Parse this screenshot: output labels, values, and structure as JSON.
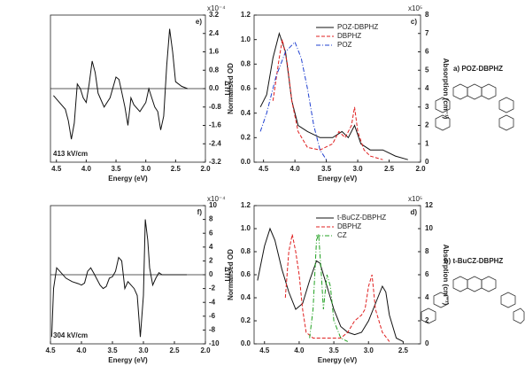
{
  "chart_data": [
    {
      "type": "line",
      "label": "e)",
      "xlabel": "Energy (eV)",
      "ylabel": "ΔT/T",
      "y_multiplier": "x10⁻⁴",
      "annotation": "413 kV/cm",
      "xlim": [
        4.6,
        2.0
      ],
      "xticks": [
        4.5,
        {
          "value": 4.0,
          "label": "4.0"
        },
        3.5,
        {
          "value": 3.0,
          "label": "3.0"
        },
        2.5,
        {
          "value": 2.0,
          "label": "2.0"
        }
      ],
      "ylim": [
        -3.2,
        3.2
      ],
      "yticks": [
        -3.2,
        -2.4,
        -1.6,
        -0.8,
        {
          "value": 0,
          "label": "0.0"
        },
        0.8,
        1.6,
        2.4,
        3.2
      ],
      "zero_line": true,
      "series": [
        {
          "color": "#111111",
          "dash": "solid",
          "x": [
            4.55,
            4.45,
            4.35,
            4.3,
            4.25,
            4.2,
            4.15,
            4.1,
            4.05,
            4.0,
            3.95,
            3.9,
            3.85,
            3.8,
            3.75,
            3.7,
            3.6,
            3.5,
            3.45,
            3.4,
            3.35,
            3.3,
            3.25,
            3.2,
            3.1,
            3.0,
            2.95,
            2.9,
            2.85,
            2.8,
            2.75,
            2.7,
            2.65,
            2.6,
            2.55,
            2.5,
            2.4,
            2.3
          ],
          "values": [
            -0.3,
            -0.6,
            -0.9,
            -1.4,
            -2.2,
            -1.5,
            0.2,
            0.0,
            -0.4,
            -0.6,
            0.2,
            1.2,
            0.7,
            -0.2,
            -0.5,
            -0.8,
            -0.4,
            0.5,
            0.4,
            -0.2,
            -0.8,
            -1.6,
            -0.4,
            -0.7,
            -1.0,
            -0.6,
            0.0,
            -0.4,
            -0.8,
            -1.0,
            -1.8,
            -1.2,
            1.0,
            2.6,
            1.6,
            0.3,
            0.1,
            0.0
          ]
        }
      ]
    },
    {
      "type": "line",
      "label": "c)",
      "xlabel": "Energy (eV)",
      "ylabel": "Normalised OD",
      "y2label": "Absorption (cm⁻¹)",
      "y2_multiplier": "x10⁵",
      "legend": "upper right",
      "xlim": [
        4.65,
        2.0
      ],
      "xticks": [
        4.5,
        {
          "value": 4.0,
          "label": "4.0"
        },
        3.5,
        {
          "value": 3.0,
          "label": "3.0"
        },
        2.5,
        {
          "value": 2.0,
          "label": "2.0"
        }
      ],
      "ylim": [
        0,
        1.2
      ],
      "yticks": [
        {
          "value": 0,
          "label": "0.0"
        },
        0.2,
        0.4,
        0.6,
        0.8,
        {
          "value": 1.0,
          "label": "1.0"
        },
        1.2
      ],
      "y2lim": [
        0,
        8
      ],
      "y2ticks": [
        0,
        1,
        2,
        3,
        4,
        5,
        6,
        7,
        8
      ],
      "series": [
        {
          "name": "POZ-DBPHZ",
          "color": "#111111",
          "dash": "solid",
          "x": [
            4.55,
            4.45,
            4.35,
            4.25,
            4.15,
            4.05,
            3.95,
            3.8,
            3.6,
            3.4,
            3.25,
            3.15,
            3.05,
            2.95,
            2.8,
            2.6,
            2.4,
            2.2
          ],
          "values": [
            0.45,
            0.55,
            0.85,
            1.05,
            0.9,
            0.5,
            0.3,
            0.25,
            0.2,
            0.2,
            0.25,
            0.2,
            0.3,
            0.15,
            0.1,
            0.1,
            0.05,
            0.02
          ]
        },
        {
          "name": "DBPHZ",
          "color": "#e02020",
          "dash": "dashed",
          "x": [
            4.35,
            4.25,
            4.2,
            4.12,
            4.05,
            3.95,
            3.8,
            3.6,
            3.4,
            3.3,
            3.2,
            3.1,
            3.05,
            3.0,
            2.9,
            2.8,
            2.6
          ],
          "values": [
            0.5,
            0.85,
            1.0,
            0.8,
            0.5,
            0.25,
            0.12,
            0.1,
            0.15,
            0.25,
            0.2,
            0.3,
            0.45,
            0.25,
            0.1,
            0.05,
            0.02
          ]
        },
        {
          "name": "POZ",
          "color": "#2040d0",
          "dash": "dashdot",
          "x": [
            4.55,
            4.45,
            4.3,
            4.15,
            4.0,
            3.9,
            3.8,
            3.7,
            3.6,
            3.5
          ],
          "values": [
            0.25,
            0.4,
            0.7,
            0.9,
            0.98,
            0.85,
            0.6,
            0.3,
            0.1,
            0.02
          ]
        }
      ]
    },
    {
      "type": "line",
      "label": "f)",
      "xlabel": "Energy (eV)",
      "ylabel": "ΔT/T",
      "y_multiplier": "x10⁻⁴",
      "annotation": "304 kV/cm",
      "xlim": [
        4.5,
        2.0
      ],
      "xticks": [
        4.5,
        {
          "value": 4.0,
          "label": "4.0"
        },
        3.5,
        {
          "value": 3.0,
          "label": "3.0"
        },
        2.5,
        {
          "value": 2.0,
          "label": "2.0"
        }
      ],
      "ylim": [
        -10,
        10
      ],
      "yticks": [
        -10,
        -8,
        -6,
        -4,
        -2,
        0,
        2,
        4,
        6,
        8,
        10
      ],
      "zero_line": true,
      "series": [
        {
          "color": "#111111",
          "dash": "solid",
          "x": [
            4.48,
            4.45,
            4.4,
            4.35,
            4.25,
            4.15,
            4.05,
            4.0,
            3.95,
            3.9,
            3.85,
            3.8,
            3.7,
            3.65,
            3.6,
            3.55,
            3.5,
            3.45,
            3.4,
            3.35,
            3.3,
            3.25,
            3.2,
            3.15,
            3.1,
            3.05,
            3.0,
            2.97,
            2.93,
            2.9,
            2.85,
            2.8,
            2.75,
            2.7,
            2.5,
            2.3
          ],
          "values": [
            -9,
            -2,
            1,
            0.5,
            -0.5,
            -1,
            -1.3,
            -1.5,
            -1.2,
            0.5,
            1.0,
            0.2,
            -1.5,
            -2,
            -1.7,
            -0.5,
            -0.3,
            0.5,
            2.5,
            2,
            -2,
            -1,
            -1.5,
            -2,
            -3,
            -9,
            -3,
            8,
            5,
            1,
            -1.5,
            -0.5,
            0.3,
            0,
            0,
            0
          ]
        }
      ]
    },
    {
      "type": "line",
      "label": "d)",
      "xlabel": "Energy (eV)",
      "ylabel": "Normalised OD",
      "y2label": "Absorption (cm⁻¹)",
      "y2_multiplier": "x10⁵",
      "legend": "upper right",
      "xlim": [
        4.65,
        2.25
      ],
      "xticks": [
        4.5,
        {
          "value": 4.0,
          "label": "4.0"
        },
        3.5,
        {
          "value": 3.0,
          "label": "3.0"
        },
        2.5
      ],
      "ylim": [
        0,
        1.2
      ],
      "yticks": [
        {
          "value": 0,
          "label": "0.0"
        },
        0.2,
        0.4,
        0.6,
        0.8,
        {
          "value": 1.0,
          "label": "1.0"
        },
        1.2
      ],
      "y2lim": [
        0,
        12
      ],
      "y2ticks": [
        0,
        2,
        4,
        6,
        8,
        10,
        12
      ],
      "series": [
        {
          "name": "t-BuCZ-DBPHZ",
          "color": "#111111",
          "dash": "solid",
          "x": [
            4.6,
            4.5,
            4.42,
            4.35,
            4.25,
            4.15,
            4.05,
            3.95,
            3.85,
            3.75,
            3.7,
            3.6,
            3.5,
            3.4,
            3.3,
            3.2,
            3.1,
            3.0,
            2.9,
            2.8,
            2.75,
            2.7,
            2.6,
            2.5
          ],
          "values": [
            0.55,
            0.85,
            1.0,
            0.9,
            0.65,
            0.45,
            0.3,
            0.35,
            0.55,
            0.72,
            0.7,
            0.5,
            0.3,
            0.15,
            0.1,
            0.08,
            0.1,
            0.2,
            0.35,
            0.5,
            0.45,
            0.25,
            0.05,
            0.02
          ]
        },
        {
          "name": "DBPHZ",
          "color": "#e02020",
          "dash": "dashed",
          "x": [
            4.2,
            4.15,
            4.1,
            4.05,
            4.0,
            3.95,
            3.9,
            3.8,
            3.4,
            3.3,
            3.2,
            3.1,
            3.05,
            3.0,
            2.95,
            2.9,
            2.8,
            2.7
          ],
          "values": [
            0.4,
            0.8,
            0.95,
            0.8,
            0.6,
            0.3,
            0.1,
            0.05,
            0.05,
            0.1,
            0.2,
            0.25,
            0.3,
            0.5,
            0.6,
            0.3,
            0.1,
            0.02
          ]
        },
        {
          "name": "CZ",
          "color": "#20a020",
          "dash": "dashdot",
          "x": [
            3.85,
            3.8,
            3.75,
            3.72,
            3.68,
            3.65,
            3.6,
            3.55,
            3.5,
            3.4,
            3.3
          ],
          "values": [
            0.05,
            0.3,
            0.9,
            0.95,
            0.6,
            0.3,
            0.6,
            0.5,
            0.2,
            0.05,
            0.02
          ]
        }
      ]
    }
  ],
  "molecules": [
    {
      "label": "a) POZ-DBPHZ"
    },
    {
      "label": "b) t-BuCZ-DBPHZ"
    }
  ]
}
